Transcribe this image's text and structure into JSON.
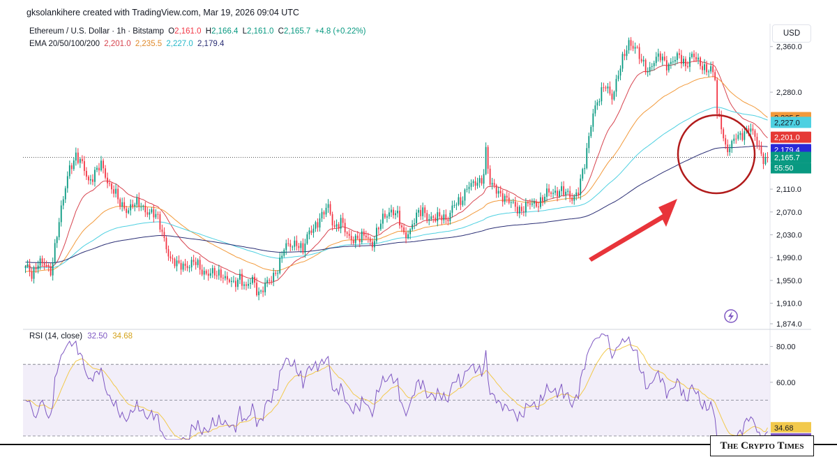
{
  "attribution": "gksolankihere created with TradingView.com, Mar 19, 2026 09:04 UTC",
  "legend": {
    "symbol": "Ethereum / U.S. Dollar · 1h · Bitstamp",
    "o_label": "O",
    "o_value": "2,161.0",
    "h_label": "H",
    "h_value": "2,166.4",
    "l_label": "L",
    "l_value": "2,161.0",
    "c_label": "C",
    "c_value": "2,165.7",
    "change": "+4.8 (+0.22%)"
  },
  "ema_legend": {
    "label": "EMA 20/50/100/200",
    "v20": "2,201.0",
    "v50": "2,235.5",
    "v100": "2,227.0",
    "v200": "2,179.4"
  },
  "rsi_legend": {
    "label": "RSI (14, close)",
    "rsi": "32.50",
    "ma": "34.68"
  },
  "currency_button": "USD",
  "watermark": "The Crypto Times",
  "colors": {
    "up": "#089981",
    "down": "#f23645",
    "ema20": "#d7434e",
    "ema50": "#f29a3b",
    "ema100": "#4dd0e1",
    "ema200": "#2a2e74",
    "rsi": "#7e57c2",
    "rsi_ma": "#f2c94c",
    "arrow": "#e8343a",
    "circle": "#b11b1b"
  },
  "chart_data": {
    "type": "candlestick",
    "price_ylim": [
      1874,
      2400
    ],
    "price_ticks": [
      {
        "v": 2360,
        "label": "2,360.0"
      },
      {
        "v": 2280,
        "label": "2,280.0"
      },
      {
        "v": 2110,
        "label": "2,110.0"
      },
      {
        "v": 2070,
        "label": "2,070.0"
      },
      {
        "v": 2030,
        "label": "2,030.0"
      },
      {
        "v": 1990,
        "label": "1,990.0"
      },
      {
        "v": 1950,
        "label": "1,950.0"
      },
      {
        "v": 1910,
        "label": "1,910.0"
      },
      {
        "v": 1874,
        "label": "1,874.0"
      }
    ],
    "price_badges": [
      {
        "name": "ema50-badge",
        "v": 2235.5,
        "label": "2,235.5",
        "color": "#f29a3b",
        "text": "#131722"
      },
      {
        "name": "ema100-badge",
        "v": 2227.0,
        "label": "2,227.0",
        "color": "#4dd0e1",
        "text": "#131722"
      },
      {
        "name": "ema20-badge",
        "v": 2201.0,
        "label": "2,201.0",
        "color": "#e53935",
        "text": "#ffffff"
      },
      {
        "name": "ema200-badge",
        "v": 2179.4,
        "label": "2,179.4",
        "color": "#2929d8",
        "text": "#ffffff"
      },
      {
        "name": "last-price-badge",
        "v": 2165.7,
        "label": "2,165.7",
        "color": "#089981",
        "text": "#ffffff"
      }
    ],
    "countdown": "55:50",
    "last_price": 2165.7,
    "anchors": [
      [
        0,
        1975
      ],
      [
        3,
        1960
      ],
      [
        6,
        1985
      ],
      [
        9,
        1975
      ],
      [
        12,
        1965
      ],
      [
        15,
        2035
      ],
      [
        18,
        2090
      ],
      [
        21,
        2150
      ],
      [
        24,
        2170
      ],
      [
        27,
        2150
      ],
      [
        30,
        2125
      ],
      [
        33,
        2140
      ],
      [
        36,
        2150
      ],
      [
        39,
        2125
      ],
      [
        42,
        2110
      ],
      [
        45,
        2080
      ],
      [
        48,
        2075
      ],
      [
        51,
        2085
      ],
      [
        54,
        2080
      ],
      [
        57,
        2075
      ],
      [
        60,
        2070
      ],
      [
        63,
        2055
      ],
      [
        66,
        2025
      ],
      [
        69,
        1985
      ],
      [
        72,
        1975
      ],
      [
        75,
        1980
      ],
      [
        78,
        1975
      ],
      [
        81,
        1980
      ],
      [
        84,
        1970
      ],
      [
        87,
        1960
      ],
      [
        90,
        1960
      ],
      [
        93,
        1965
      ],
      [
        96,
        1950
      ],
      [
        99,
        1940
      ],
      [
        102,
        1960
      ],
      [
        105,
        1935
      ],
      [
        108,
        1950
      ],
      [
        111,
        1930
      ],
      [
        114,
        1940
      ],
      [
        117,
        1950
      ],
      [
        120,
        1975
      ],
      [
        123,
        2005
      ],
      [
        126,
        2010
      ],
      [
        129,
        2020
      ],
      [
        132,
        2000
      ],
      [
        135,
        2035
      ],
      [
        138,
        2050
      ],
      [
        141,
        2060
      ],
      [
        144,
        2080
      ],
      [
        147,
        2045
      ],
      [
        150,
        2050
      ],
      [
        153,
        2030
      ],
      [
        156,
        2025
      ],
      [
        159,
        2020
      ],
      [
        162,
        2030
      ],
      [
        165,
        2015
      ],
      [
        168,
        2040
      ],
      [
        171,
        2065
      ],
      [
        174,
        2075
      ],
      [
        177,
        2060
      ],
      [
        180,
        2030
      ],
      [
        183,
        2040
      ],
      [
        186,
        2060
      ],
      [
        189,
        2075
      ],
      [
        192,
        2060
      ],
      [
        195,
        2055
      ],
      [
        198,
        2065
      ],
      [
        201,
        2060
      ],
      [
        204,
        2080
      ],
      [
        207,
        2090
      ],
      [
        210,
        2115
      ],
      [
        213,
        2115
      ],
      [
        216,
        2125
      ],
      [
        218,
        2140
      ],
      [
        219,
        2180
      ],
      [
        221,
        2115
      ],
      [
        224,
        2110
      ],
      [
        227,
        2100
      ],
      [
        230,
        2085
      ],
      [
        233,
        2080
      ],
      [
        236,
        2075
      ],
      [
        239,
        2080
      ],
      [
        242,
        2085
      ],
      [
        245,
        2090
      ],
      [
        248,
        2100
      ],
      [
        251,
        2105
      ],
      [
        254,
        2110
      ],
      [
        257,
        2100
      ],
      [
        260,
        2095
      ],
      [
        263,
        2110
      ],
      [
        266,
        2150
      ],
      [
        268,
        2200
      ],
      [
        270,
        2250
      ],
      [
        273,
        2270
      ],
      [
        276,
        2290
      ],
      [
        279,
        2275
      ],
      [
        282,
        2310
      ],
      [
        285,
        2345
      ],
      [
        287,
        2370
      ],
      [
        290,
        2360
      ],
      [
        293,
        2330
      ],
      [
        296,
        2320
      ],
      [
        299,
        2335
      ],
      [
        302,
        2340
      ],
      [
        305,
        2330
      ],
      [
        308,
        2335
      ],
      [
        311,
        2340
      ],
      [
        314,
        2330
      ],
      [
        317,
        2345
      ],
      [
        320,
        2330
      ],
      [
        323,
        2325
      ],
      [
        326,
        2320
      ],
      [
        328,
        2300
      ],
      [
        329,
        2240
      ],
      [
        331,
        2225
      ],
      [
        333,
        2185
      ],
      [
        335,
        2180
      ],
      [
        338,
        2200
      ],
      [
        341,
        2210
      ],
      [
        344,
        2215
      ],
      [
        347,
        2200
      ],
      [
        349,
        2185
      ],
      [
        351,
        2166
      ],
      [
        353,
        2166
      ]
    ],
    "ema_periods": [
      20,
      50,
      100,
      200
    ],
    "ema_seed": {
      "ema50": 1965,
      "ema100": 1972,
      "ema200": 1982
    },
    "rsi_ylim": [
      28,
      88
    ],
    "rsi_ticks": [
      {
        "v": 80,
        "label": "80.00"
      },
      {
        "v": 60,
        "label": "60.00"
      }
    ],
    "rsi_bands": [
      70,
      50,
      30
    ],
    "rsi_last": 32.5,
    "rsi_ma_last": 34.68
  }
}
